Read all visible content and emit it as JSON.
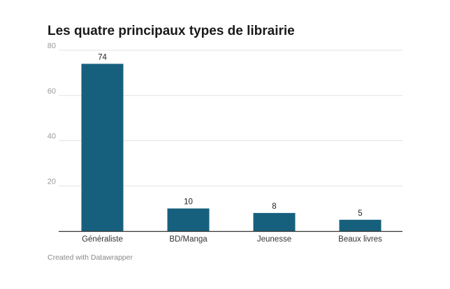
{
  "chart_data": {
    "type": "bar",
    "title": "Les quatre principaux types de librairie",
    "categories": [
      "Généraliste",
      "BD/Manga",
      "Jeunesse",
      "Beaux livres"
    ],
    "values": [
      74,
      10,
      8,
      5
    ],
    "ylim": [
      0,
      80
    ],
    "yticks": [
      20,
      40,
      60,
      80
    ],
    "xlabel": "",
    "ylabel": "",
    "grid": true,
    "bar_color": "#17607d"
  },
  "footer": {
    "credit": "Created with Datawrapper"
  },
  "colors": {
    "bar": "#17607d",
    "grid": "#e3e3e3",
    "axis": "#333333",
    "tick_text": "#9a9a9a"
  }
}
